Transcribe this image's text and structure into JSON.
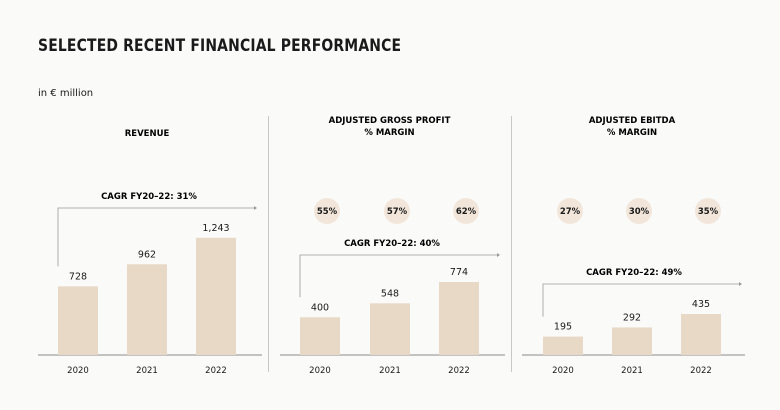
{
  "page": {
    "title": "SELECTED RECENT FINANCIAL PERFORMANCE",
    "unit": "in € million"
  },
  "colors": {
    "bar": "#e8d8c6",
    "margin_circle": "#f2e6da",
    "axis": "#8a8a8a",
    "cagr_line": "#9a9a9a",
    "divider": "#c8c8c8"
  },
  "chart_data": [
    {
      "type": "bar",
      "title": [
        "REVENUE"
      ],
      "categories": [
        "2020",
        "2021",
        "2022"
      ],
      "values": [
        728,
        962,
        1243
      ],
      "value_labels": [
        "728",
        "962",
        "1,243"
      ],
      "cagr_label": "CAGR FY20–22: 31%",
      "margins": []
    },
    {
      "type": "bar",
      "title": [
        "ADJUSTED GROSS PROFIT",
        "% MARGIN"
      ],
      "categories": [
        "2020",
        "2021",
        "2022"
      ],
      "values": [
        400,
        548,
        774
      ],
      "value_labels": [
        "400",
        "548",
        "774"
      ],
      "cagr_label": "CAGR FY20–22: 40%",
      "margins": [
        "55%",
        "57%",
        "62%"
      ]
    },
    {
      "type": "bar",
      "title": [
        "ADJUSTED EBITDA",
        "% MARGIN"
      ],
      "categories": [
        "2020",
        "2021",
        "2022"
      ],
      "values": [
        195,
        292,
        435
      ],
      "value_labels": [
        "195",
        "292",
        "435"
      ],
      "cagr_label": "CAGR FY20–22: 49%",
      "margins": [
        "27%",
        "30%",
        "35%"
      ]
    }
  ]
}
